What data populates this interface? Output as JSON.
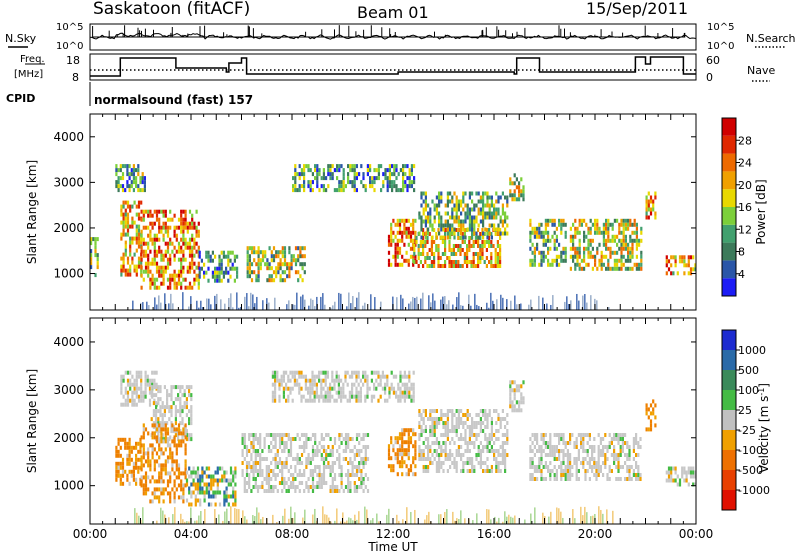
{
  "header": {
    "station": "Saskatoon (fitACF)",
    "beam": "Beam 01",
    "date": "15/Sep/2011"
  },
  "top_panels": {
    "nsky_label": "N.Sky",
    "nsky_tick_top": "10^5",
    "nsky_tick_bottom": "10^0",
    "nsearch_label": "N.Search",
    "freq_label_1": "Freq.",
    "freq_label_2": "[MHz]",
    "freq_ticks": [
      "18",
      "8"
    ],
    "nave_label": "Nave",
    "nave_ticks": [
      "60",
      "0"
    ],
    "cpid_label": "CPID",
    "cpid_value": "normalsound (fast) 157"
  },
  "chart_data": [
    {
      "type": "heatmap",
      "title": "",
      "xlabel": "Time UT",
      "ylabel": "Slant Range [km]",
      "x_ticks": [
        "00:00",
        "04:00",
        "08:00",
        "12:00",
        "16:00",
        "20:00",
        "00:00"
      ],
      "y_ticks": [
        "1000",
        "2000",
        "3000",
        "4000"
      ],
      "ylim": [
        200,
        4500
      ],
      "colorbar": {
        "label": "Power [dB]",
        "ticks": [
          "4",
          "8",
          "12",
          "16",
          "20",
          "24",
          "28"
        ],
        "colors": [
          "#1c1cf5",
          "#2a56a8",
          "#3c7a5a",
          "#41a06e",
          "#7ccf3a",
          "#e8d800",
          "#f0a000",
          "#ee6a00",
          "#e02800",
          "#d00000"
        ]
      },
      "echo_regions": [
        {
          "t": [
            1.2,
            2.0
          ],
          "r": [
            1000,
            2600
          ],
          "level": 0.6
        },
        {
          "t": [
            1.0,
            2.2
          ],
          "r": [
            2800,
            3400
          ],
          "level": 0.35
        },
        {
          "t": [
            0.0,
            0.3
          ],
          "r": [
            1000,
            1800
          ],
          "level": 0.4
        },
        {
          "t": [
            2.0,
            4.3
          ],
          "r": [
            700,
            2400
          ],
          "level": 0.7
        },
        {
          "t": [
            4.3,
            5.8
          ],
          "r": [
            800,
            1500
          ],
          "level": 0.3
        },
        {
          "t": [
            6.2,
            8.5
          ],
          "r": [
            850,
            1600
          ],
          "level": 0.45
        },
        {
          "t": [
            8.0,
            12.8
          ],
          "r": [
            2800,
            3400
          ],
          "level": 0.3
        },
        {
          "t": [
            11.8,
            12.9
          ],
          "r": [
            1200,
            2200
          ],
          "level": 0.75
        },
        {
          "t": [
            12.8,
            16.2
          ],
          "r": [
            1200,
            2000
          ],
          "level": 0.6
        },
        {
          "t": [
            13.0,
            16.5
          ],
          "r": [
            1800,
            2800
          ],
          "level": 0.4
        },
        {
          "t": [
            16.6,
            17.2
          ],
          "r": [
            2600,
            3200
          ],
          "level": 0.5
        },
        {
          "t": [
            17.4,
            18.8
          ],
          "r": [
            1200,
            2200
          ],
          "level": 0.4
        },
        {
          "t": [
            19.0,
            21.8
          ],
          "r": [
            1100,
            2200
          ],
          "level": 0.5
        },
        {
          "t": [
            22.0,
            22.4
          ],
          "r": [
            2200,
            2800
          ],
          "level": 0.65
        },
        {
          "t": [
            22.8,
            24.0
          ],
          "r": [
            1000,
            1400
          ],
          "level": 0.65
        }
      ]
    },
    {
      "type": "heatmap",
      "title": "",
      "xlabel": "Time UT",
      "ylabel": "Slant Range [km]",
      "x_ticks": [
        "00:00",
        "04:00",
        "08:00",
        "12:00",
        "16:00",
        "20:00",
        "00:00"
      ],
      "y_ticks": [
        "1000",
        "2000",
        "3000",
        "4000"
      ],
      "ylim": [
        200,
        4500
      ],
      "colorbar": {
        "label": "Velocity [m s^-1]",
        "ticks": [
          "1000",
          "500",
          "100",
          "25",
          "-25",
          "-100",
          "-500",
          "-1000"
        ],
        "colors": [
          "#1c2bd0",
          "#2a6aa8",
          "#3a8a5a",
          "#44bb44",
          "#c0c0c0",
          "#f0a000",
          "#ee7000",
          "#e84000",
          "#e01000"
        ]
      },
      "echo_regions": [
        {
          "t": [
            1.2,
            2.6
          ],
          "r": [
            2700,
            3400
          ],
          "vel": "grey"
        },
        {
          "t": [
            2.4,
            4.0
          ],
          "r": [
            2000,
            3100
          ],
          "vel": "grey"
        },
        {
          "t": [
            1.0,
            2.0
          ],
          "r": [
            1000,
            2000
          ],
          "vel": "orange"
        },
        {
          "t": [
            2.0,
            3.8
          ],
          "r": [
            700,
            2300
          ],
          "vel": "orange"
        },
        {
          "t": [
            3.8,
            5.8
          ],
          "r": [
            600,
            1400
          ],
          "vel": "mixed"
        },
        {
          "t": [
            6.0,
            11.0
          ],
          "r": [
            850,
            2100
          ],
          "vel": "grey"
        },
        {
          "t": [
            7.2,
            12.8
          ],
          "r": [
            2800,
            3400
          ],
          "vel": "grey"
        },
        {
          "t": [
            11.8,
            12.9
          ],
          "r": [
            1200,
            2200
          ],
          "vel": "orange"
        },
        {
          "t": [
            13.0,
            16.5
          ],
          "r": [
            1300,
            2600
          ],
          "vel": "grey"
        },
        {
          "t": [
            16.6,
            17.2
          ],
          "r": [
            2600,
            3200
          ],
          "vel": "grey"
        },
        {
          "t": [
            17.4,
            21.8
          ],
          "r": [
            1100,
            2100
          ],
          "vel": "grey"
        },
        {
          "t": [
            22.0,
            22.4
          ],
          "r": [
            2200,
            2800
          ],
          "vel": "orange"
        },
        {
          "t": [
            22.8,
            24.0
          ],
          "r": [
            1000,
            1400
          ],
          "vel": "grey"
        }
      ]
    }
  ]
}
